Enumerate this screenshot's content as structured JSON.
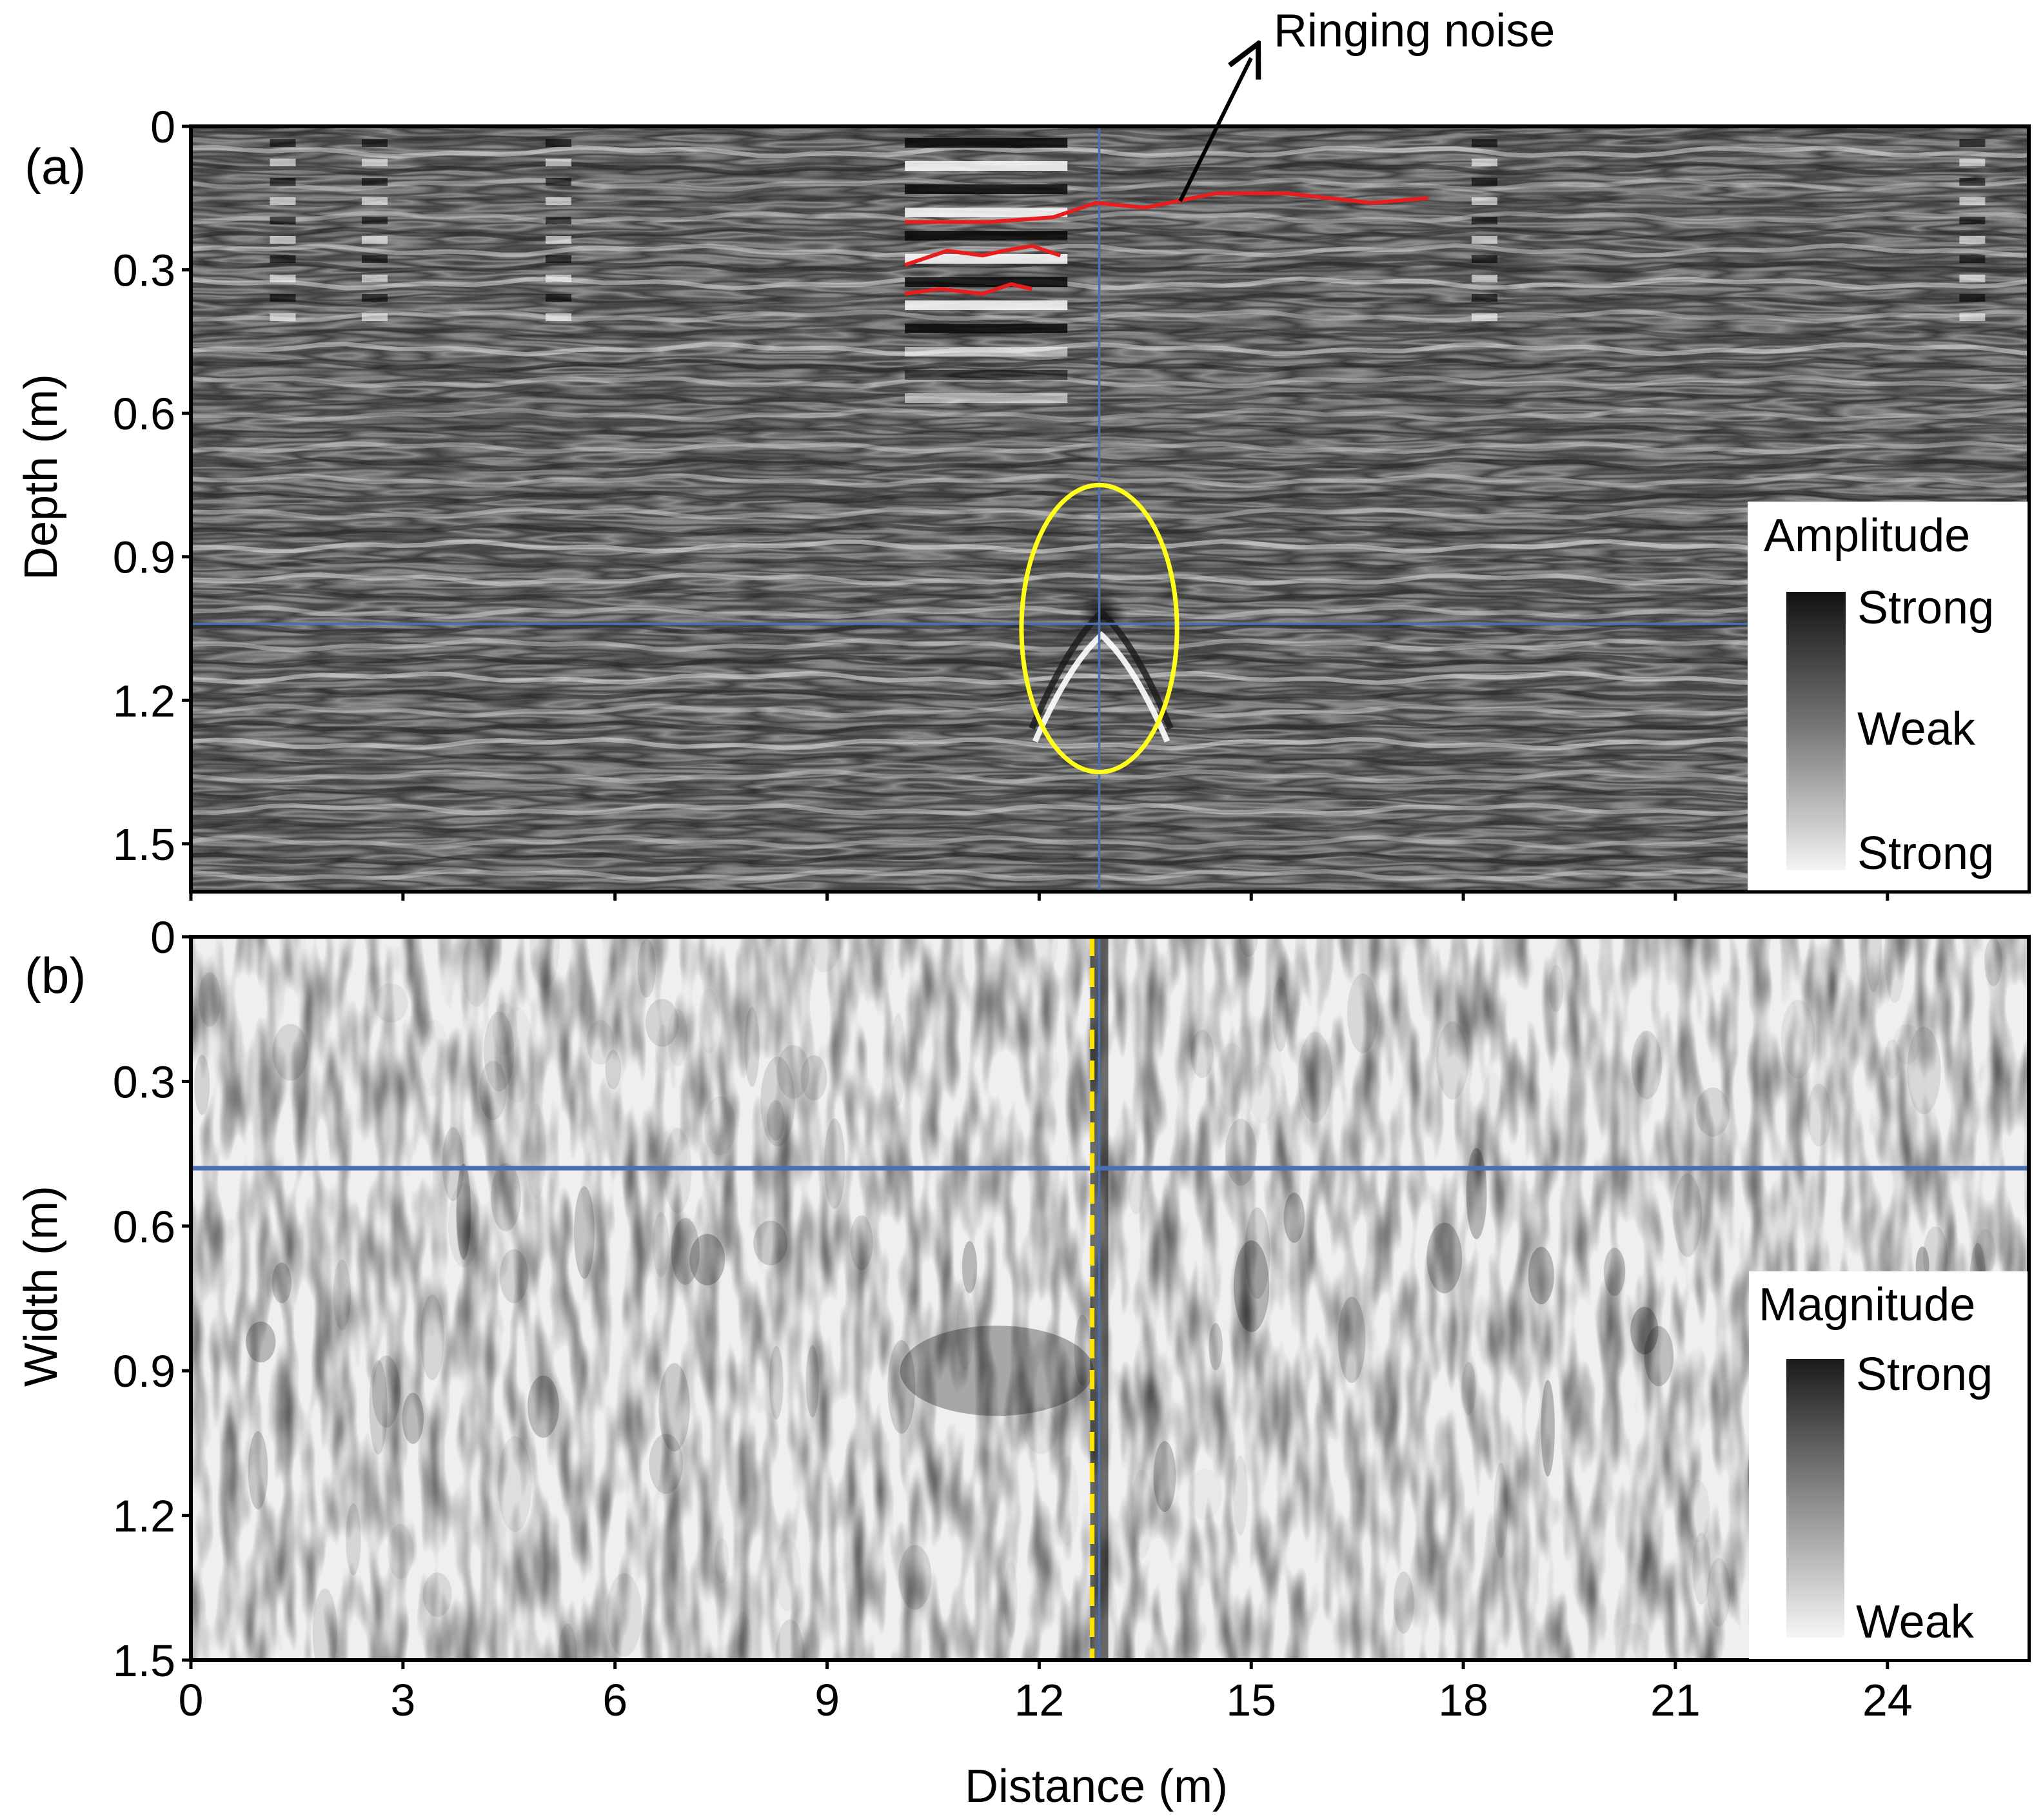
{
  "figure": {
    "annotation": {
      "text": "Ringing noise"
    }
  },
  "panels": [
    {
      "label": "(a)",
      "ylabel": "Depth (m)",
      "legend": {
        "title": "Amplitude",
        "labels": [
          "Strong",
          "Weak",
          "Strong"
        ]
      }
    },
    {
      "label": "(b)",
      "ylabel": "Width (m)",
      "xlabel": "Distance (m)",
      "legend": {
        "title": "Magnitude",
        "labels": [
          "Strong",
          "Weak"
        ]
      }
    }
  ],
  "colors": {
    "frame": "#000000",
    "crosshair": "#4a6fb5",
    "ringing_trace": "#e81e1e",
    "target_marker": "#ffff1a",
    "yellow_dash": "#ffe600",
    "annotation_arrow": "#000000"
  },
  "chart_data": [
    {
      "type": "heatmap",
      "title": "",
      "panel": "(a)",
      "xlabel": "",
      "ylabel": "Depth (m)",
      "xlim": [
        0,
        26
      ],
      "ylim": [
        1.6,
        0
      ],
      "xticks": [
        0,
        3,
        6,
        9,
        12,
        15,
        18,
        21,
        24
      ],
      "yticks": [
        0,
        0.3,
        0.6,
        0.9,
        1.2,
        1.5
      ],
      "yticklabels": [
        "0",
        "0.3",
        "0.6",
        "0.9",
        "1.2",
        "1.5"
      ],
      "colorscale": "grayscale amplitude",
      "grid": false,
      "legend_position": "bottom-right",
      "crosshair": {
        "x": 12.85,
        "y": 1.04
      },
      "target": {
        "x": 12.85,
        "y": 1.05,
        "x_halfwidth": 1.1,
        "y_halfwidth": 0.3
      },
      "ringing_noise_lines": [
        [
          [
            10.1,
            0.2
          ],
          [
            11.3,
            0.2
          ],
          [
            12.2,
            0.19
          ],
          [
            12.8,
            0.16
          ],
          [
            13.5,
            0.17
          ],
          [
            14.5,
            0.14
          ],
          [
            15.5,
            0.14
          ],
          [
            16.7,
            0.16
          ],
          [
            17.5,
            0.15
          ]
        ],
        [
          [
            10.1,
            0.29
          ],
          [
            10.7,
            0.26
          ],
          [
            11.2,
            0.27
          ],
          [
            11.5,
            0.26
          ],
          [
            11.9,
            0.25
          ],
          [
            12.3,
            0.27
          ]
        ],
        [
          [
            10.1,
            0.35
          ],
          [
            10.6,
            0.34
          ],
          [
            11.2,
            0.35
          ],
          [
            11.6,
            0.33
          ],
          [
            11.9,
            0.34
          ]
        ]
      ]
    },
    {
      "type": "heatmap",
      "title": "",
      "panel": "(b)",
      "xlabel": "Distance (m)",
      "ylabel": "Width (m)",
      "xlim": [
        0,
        26
      ],
      "ylim": [
        1.5,
        0
      ],
      "xticks": [
        0,
        3,
        6,
        9,
        12,
        15,
        18,
        21,
        24
      ],
      "xticklabels": [
        "0",
        "3",
        "6",
        "9",
        "12",
        "15",
        "18",
        "21",
        "24"
      ],
      "yticks": [
        0,
        0.3,
        0.6,
        0.9,
        1.2,
        1.5
      ],
      "yticklabels": [
        "0",
        "0.3",
        "0.6",
        "0.9",
        "1.2",
        "1.5"
      ],
      "colorscale": "grayscale magnitude",
      "grid": false,
      "legend_position": "bottom-right",
      "crosshair": {
        "x": 12.85,
        "y": 0.48
      },
      "yellow_dashed_line_x": 12.75
    }
  ]
}
